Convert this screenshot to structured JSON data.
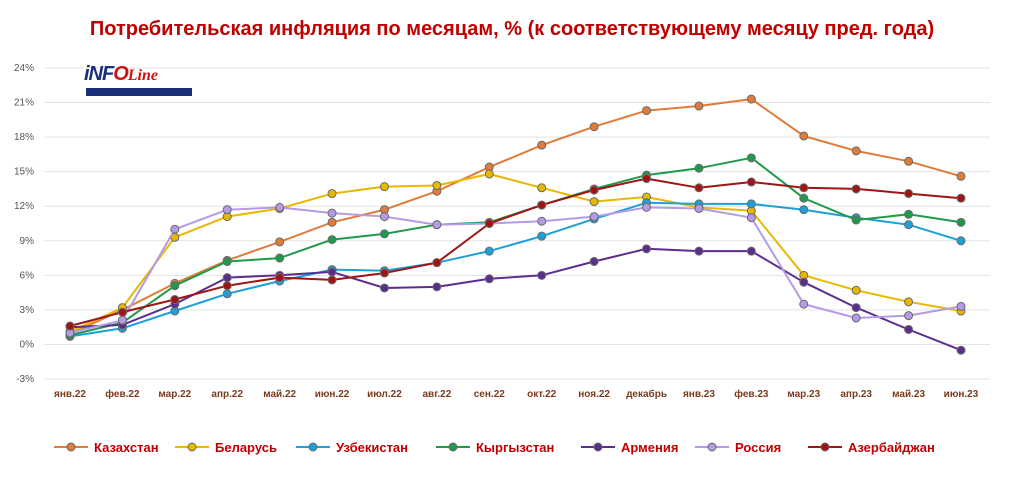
{
  "chart_data": {
    "type": "line",
    "title": "Потребительская инфляция по месяцам, % (к соответствующему месяцу пред. года)",
    "categories": [
      "янв.22",
      "фев.22",
      "мар.22",
      "апр.22",
      "май.22",
      "июн.22",
      "июл.22",
      "авг.22",
      "сен.22",
      "окт.22",
      "ноя.22",
      "декабрь",
      "янв.23",
      "фев.23",
      "мар.23",
      "апр.23",
      "май.23",
      "июн.23"
    ],
    "y_ticks": [
      "24%",
      "21%",
      "18%",
      "15%",
      "12%",
      "9%",
      "6%",
      "3%",
      "0%",
      "-3%"
    ],
    "ylim": [
      -3,
      24
    ],
    "y_step": 3,
    "grid": "horizontal",
    "legend_position": "bottom",
    "series": [
      {
        "name": "Казахстан",
        "color": "#e07b39",
        "values": [
          0.9,
          3.0,
          5.3,
          7.3,
          8.9,
          10.6,
          11.7,
          13.3,
          15.4,
          17.3,
          18.9,
          20.3,
          20.7,
          21.3,
          18.1,
          16.8,
          15.9,
          14.6
        ]
      },
      {
        "name": "Беларусь",
        "color": "#e8b800",
        "values": [
          1.1,
          3.2,
          9.3,
          11.1,
          11.8,
          13.1,
          13.7,
          13.8,
          14.8,
          13.6,
          12.4,
          12.8,
          11.9,
          11.6,
          6.0,
          4.7,
          3.7,
          2.9
        ]
      },
      {
        "name": "Узбекистан",
        "color": "#1ba1d8",
        "values": [
          0.7,
          1.4,
          2.9,
          4.4,
          5.5,
          6.5,
          6.4,
          7.1,
          8.1,
          9.4,
          10.9,
          12.3,
          12.2,
          12.2,
          11.7,
          11.0,
          10.4,
          9.0
        ]
      },
      {
        "name": "Кыргызстан",
        "color": "#1f9a4a",
        "values": [
          0.8,
          1.9,
          5.1,
          7.2,
          7.5,
          9.1,
          9.6,
          10.4,
          10.6,
          12.1,
          13.5,
          14.7,
          15.3,
          16.2,
          12.7,
          10.8,
          11.3,
          10.6
        ]
      },
      {
        "name": "Армения",
        "color": "#5b2d8e",
        "values": [
          1.5,
          1.7,
          3.5,
          5.8,
          6.0,
          6.3,
          4.9,
          5.0,
          5.7,
          6.0,
          7.2,
          8.3,
          8.1,
          8.1,
          5.4,
          3.2,
          1.3,
          -0.5
        ]
      },
      {
        "name": "Россия",
        "color": "#b59ae6",
        "values": [
          1.0,
          2.1,
          10.0,
          11.7,
          11.9,
          11.4,
          11.1,
          10.4,
          10.5,
          10.7,
          11.1,
          11.9,
          11.8,
          11.0,
          3.5,
          2.3,
          2.5,
          3.3
        ]
      },
      {
        "name": "Азербайджан",
        "color": "#a01414",
        "values": [
          1.6,
          2.8,
          3.9,
          5.1,
          5.8,
          5.6,
          6.2,
          7.1,
          10.5,
          12.1,
          13.4,
          14.4,
          13.6,
          14.1,
          13.6,
          13.5,
          13.1,
          12.7
        ]
      }
    ]
  },
  "logo": {
    "main_a": "iNF",
    "main_o": "O",
    "main_b": "",
    "sub": "Line"
  }
}
